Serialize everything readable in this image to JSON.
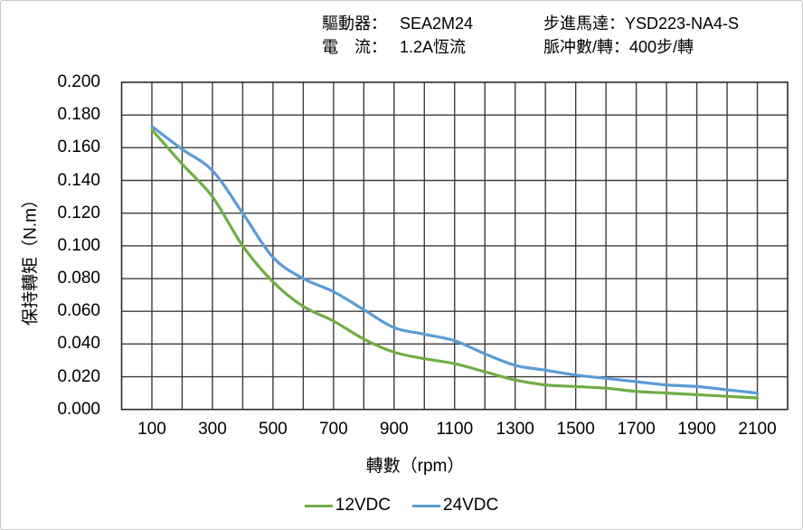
{
  "header": {
    "driver_label": "驅動器：",
    "driver_value": "SEA2M24",
    "current_label": "電　流：",
    "current_value": "1.2A恆流",
    "motor_label": "步進馬達：",
    "motor_value": "YSD223-NA4-S",
    "pulses_label": "脈冲數/轉：",
    "pulses_value": "400步/轉"
  },
  "chart_data": {
    "type": "line",
    "xlabel": "轉數（rpm）",
    "ylabel": "保持轉矩（N.m）",
    "xlim": [
      0,
      2200
    ],
    "ylim": [
      0,
      0.2
    ],
    "x_gridline_step": 100,
    "y_gridline_step": 0.02,
    "grid": true,
    "legend_position": "bottom",
    "x_tick_labels": [
      100,
      300,
      500,
      700,
      900,
      1100,
      1300,
      1500,
      1700,
      1900,
      2100
    ],
    "y_tick_labels": [
      "0.200",
      "0.180",
      "0.160",
      "0.140",
      "0.120",
      "0.100",
      "0.080",
      "0.060",
      "0.040",
      "0.020",
      "0.000"
    ],
    "x": [
      100,
      200,
      300,
      400,
      500,
      600,
      700,
      800,
      900,
      1000,
      1100,
      1200,
      1300,
      1400,
      1500,
      1600,
      1700,
      1800,
      1900,
      2000,
      2100
    ],
    "series": [
      {
        "name": "12VDC",
        "color": "#70AD47",
        "values": [
          0.171,
          0.15,
          0.13,
          0.1,
          0.078,
          0.063,
          0.054,
          0.043,
          0.035,
          0.031,
          0.028,
          0.023,
          0.018,
          0.015,
          0.014,
          0.013,
          0.011,
          0.01,
          0.009,
          0.008,
          0.007
        ]
      },
      {
        "name": "24VDC",
        "color": "#5B9BD5",
        "values": [
          0.173,
          0.159,
          0.146,
          0.12,
          0.093,
          0.08,
          0.072,
          0.061,
          0.05,
          0.046,
          0.042,
          0.034,
          0.027,
          0.024,
          0.021,
          0.019,
          0.017,
          0.015,
          0.014,
          0.012,
          0.01
        ]
      }
    ],
    "grid_color": "#3d3d3d",
    "border_color": "#2a2a2a"
  }
}
